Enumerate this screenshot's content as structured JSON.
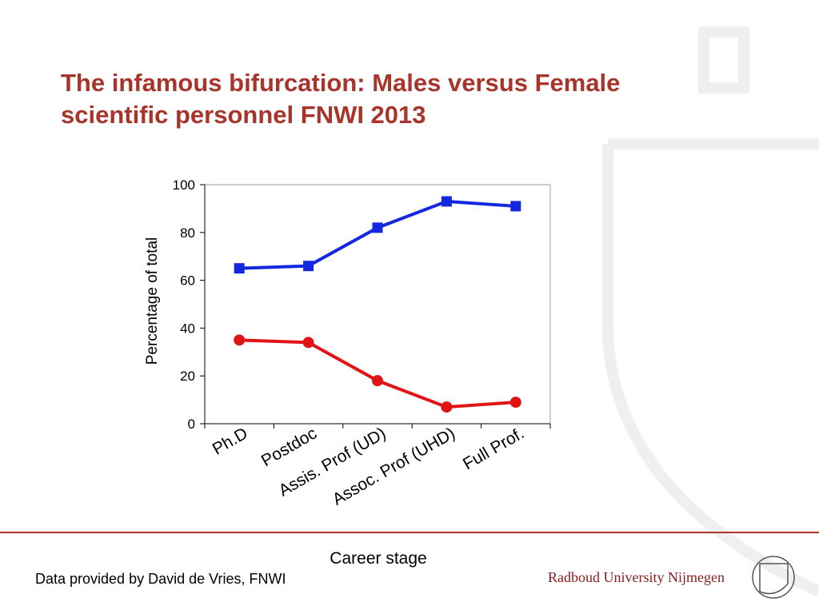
{
  "chart_data": {
    "type": "line",
    "title": "The infamous bifurcation: Males versus Female scientific personnel FNWI 2013",
    "x_label": "Career stage",
    "y_label": "Percentage of total",
    "categories": [
      "Ph.D",
      "Postdoc",
      "Assis. Prof (UD)",
      "Assoc. Prof (UHD)",
      "Full Prof."
    ],
    "series": [
      {
        "color": "#1428e0",
        "marker": "square",
        "values": [
          65,
          66,
          82,
          93,
          91
        ]
      },
      {
        "color": "#e01414",
        "marker": "circle",
        "values": [
          35,
          34,
          18,
          7,
          9
        ]
      }
    ],
    "ylim": [
      0,
      100
    ],
    "yticks": [
      0,
      20,
      40,
      60,
      80,
      100
    ],
    "grid": false
  },
  "footer": {
    "note": "Data provided by David de Vries, FNWI",
    "institution": "Radboud University Nijmegen"
  }
}
